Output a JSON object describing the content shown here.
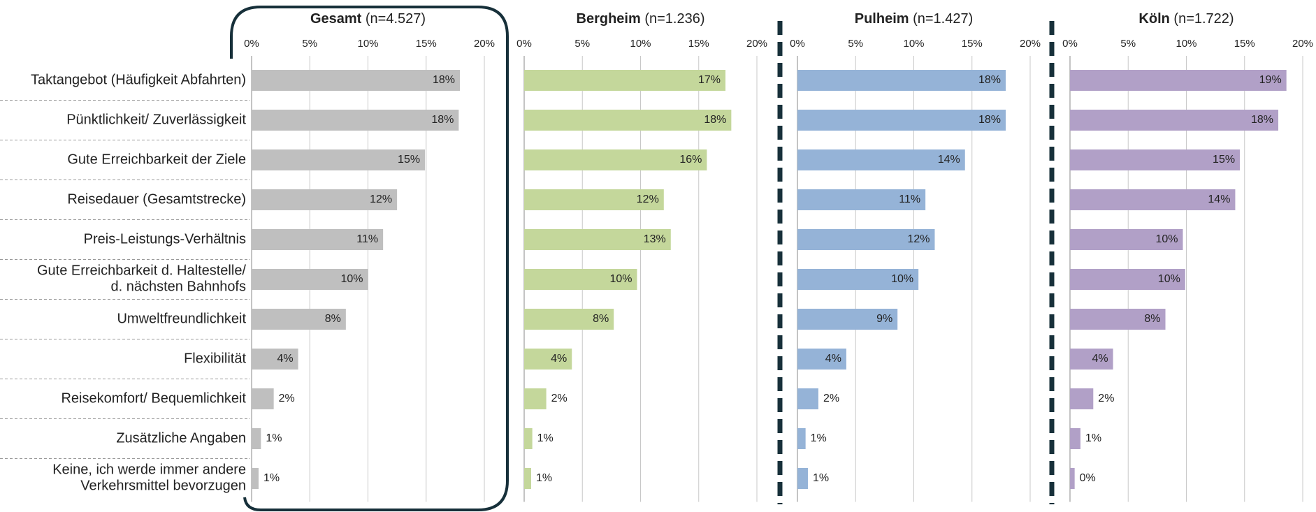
{
  "chart_data": [
    {
      "type": "bar",
      "orientation": "horizontal",
      "title": "Gesamt",
      "subtitle": "(n=4.527)",
      "categories": [
        "Taktangebot (Häufigkeit Abfahrten)",
        "Pünktlichkeit/ Zuverlässigkeit",
        "Gute Erreichbarkeit der Ziele",
        "Reisedauer (Gesamtstrecke)",
        "Preis-Leistungs-Verhältnis",
        "Gute Erreichbarkeit d. Haltestelle/\nd. nächsten Bahnhofs",
        "Umweltfreundlichkeit",
        "Flexibilität",
        "Reisekomfort/ Bequemlichkeit",
        "Zusätzliche Angaben",
        "Keine, ich werde immer andere\nVerkehrsmittel bevorzugen"
      ],
      "values": [
        17.9,
        17.8,
        14.9,
        12.5,
        11.3,
        10.0,
        8.1,
        4.0,
        1.9,
        0.8,
        0.6
      ],
      "value_labels": [
        "18%",
        "18%",
        "15%",
        "12%",
        "11%",
        "10%",
        "8%",
        "4%",
        "2%",
        "1%",
        "1%"
      ],
      "color": "#bfbfbf",
      "xlim": [
        0,
        20
      ],
      "xticks": [
        {
          "value": 0,
          "label": "0%"
        },
        {
          "value": 5,
          "label": "5%"
        },
        {
          "value": 10,
          "label": "10%"
        },
        {
          "value": 15,
          "label": "15%"
        },
        {
          "value": 20,
          "label": "20%"
        }
      ],
      "grid": true
    },
    {
      "type": "bar",
      "orientation": "horizontal",
      "title": "Bergheim",
      "subtitle": "(n=1.236)",
      "values": [
        17.3,
        17.8,
        15.7,
        12.0,
        12.6,
        9.7,
        7.7,
        4.1,
        1.9,
        0.7,
        0.6
      ],
      "value_labels": [
        "17%",
        "18%",
        "16%",
        "12%",
        "13%",
        "10%",
        "8%",
        "4%",
        "2%",
        "1%",
        "1%"
      ],
      "color": "#c4d79b",
      "xlim": [
        0,
        20
      ],
      "xticks": [
        {
          "value": 0,
          "label": "0%"
        },
        {
          "value": 5,
          "label": "5%"
        },
        {
          "value": 10,
          "label": "10%"
        },
        {
          "value": 15,
          "label": "15%"
        },
        {
          "value": 20,
          "label": "20%"
        }
      ],
      "grid": true
    },
    {
      "type": "bar",
      "orientation": "horizontal",
      "title": "Pulheim",
      "subtitle": "(n=1.427)",
      "values": [
        17.9,
        17.9,
        14.4,
        11.0,
        11.8,
        10.4,
        8.6,
        4.2,
        1.8,
        0.7,
        0.9
      ],
      "value_labels": [
        "18%",
        "18%",
        "14%",
        "11%",
        "12%",
        "10%",
        "9%",
        "4%",
        "2%",
        "1%",
        "1%"
      ],
      "color": "#95b3d7",
      "xlim": [
        0,
        20
      ],
      "xticks": [
        {
          "value": 0,
          "label": "0%"
        },
        {
          "value": 5,
          "label": "5%"
        },
        {
          "value": 10,
          "label": "10%"
        },
        {
          "value": 15,
          "label": "15%"
        },
        {
          "value": 20,
          "label": "20%"
        }
      ],
      "grid": true
    },
    {
      "type": "bar",
      "orientation": "horizontal",
      "title": "Köln",
      "subtitle": "(n=1.722)",
      "values": [
        18.6,
        17.9,
        14.6,
        14.2,
        9.7,
        9.9,
        8.2,
        3.7,
        2.0,
        0.9,
        0.4
      ],
      "value_labels": [
        "19%",
        "18%",
        "15%",
        "14%",
        "10%",
        "10%",
        "8%",
        "4%",
        "2%",
        "1%",
        "0%"
      ],
      "color": "#b1a0c7",
      "xlim": [
        0,
        20
      ],
      "xticks": [
        {
          "value": 0,
          "label": "0%"
        },
        {
          "value": 5,
          "label": "5%"
        },
        {
          "value": 10,
          "label": "10%"
        },
        {
          "value": 15,
          "label": "15%"
        },
        {
          "value": 20,
          "label": "20%"
        }
      ],
      "grid": true
    }
  ]
}
